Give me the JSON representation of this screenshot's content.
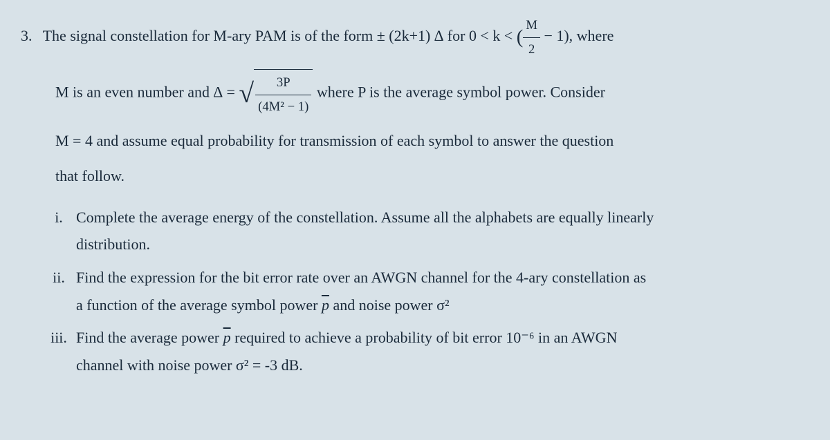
{
  "problem": {
    "number": "3.",
    "line1_part1": "The signal constellation for M-ary PAM is of the form ± (2k+1) ∆ for 0 < k < ",
    "line1_frac_num": "M",
    "line1_frac_den": "2",
    "line1_part2": " − 1), where",
    "line2_part1": "M is an even number and   ∆ = ",
    "line2_sqrt_num": "3P",
    "line2_sqrt_den": "(4M² − 1)",
    "line2_part2": "   where P is the average symbol power. Consider",
    "line3_part1": "M = 4 and assume equal probability for transmission of each symbol to answer the question",
    "line4": "that follow."
  },
  "items": {
    "i": {
      "marker": "i.",
      "text1": "Complete the average energy of the constellation. Assume all the alphabets are equally linearly",
      "text2": "distribution."
    },
    "ii": {
      "marker": "ii.",
      "text1": "Find the expression for the bit error rate over an AWGN channel for the 4-ary constellation as",
      "text2_part1": "a function of the average symbol power ",
      "text2_pbar": "p",
      "text2_part2": "  and noise power σ²"
    },
    "iii": {
      "marker": "iii.",
      "text1_part1": "Find the average power ",
      "text1_pbar": "p",
      "text1_part2": " required to achieve a probability of bit error 10⁻⁶ in an AWGN",
      "text2": "channel with noise power σ² = -3 dB."
    }
  }
}
